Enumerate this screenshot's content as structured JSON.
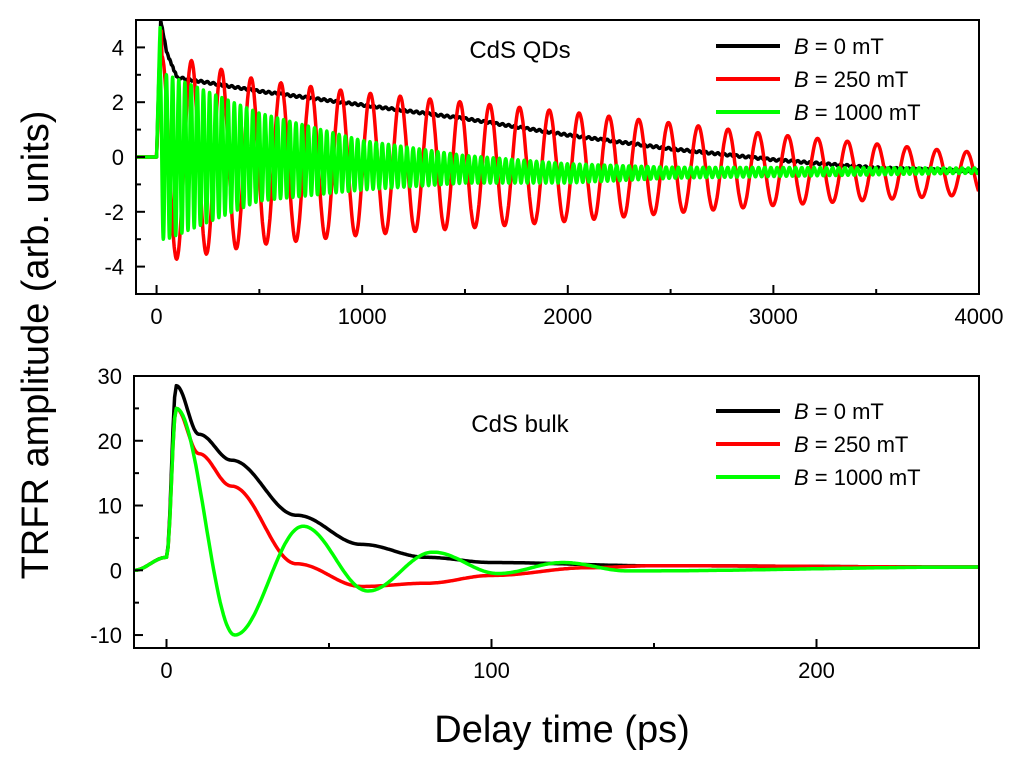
{
  "xlabel": "Delay time (ps)",
  "ylabel": "TRFR amplitude (arb. units)",
  "chart_data": [
    {
      "type": "line",
      "title": "",
      "annotation": "CdS QDs",
      "xlim": [
        -100,
        4000
      ],
      "ylim": [
        -5,
        5
      ],
      "xticks": [
        "0",
        "1000",
        "2000",
        "3000",
        "4000"
      ],
      "yticks": [
        "-4",
        "-2",
        "0",
        "2",
        "4"
      ],
      "grid": false,
      "legend_position": "top-right",
      "series": [
        {
          "name": "B = 0 mT",
          "var": "B",
          "rest": " = 0 mT",
          "color": "#000000",
          "model": "qd_b0",
          "x": [
            0,
            100,
            500,
            1000,
            1500,
            2000,
            2500,
            3000,
            3500,
            3900
          ],
          "y": [
            3.8,
            2.9,
            2.4,
            1.9,
            1.4,
            0.8,
            0.3,
            -0.1,
            -0.4,
            -0.5
          ]
        },
        {
          "name": "B = 250 mT",
          "var": "B",
          "rest": " = 250 mT",
          "color": "#ff0000",
          "model": "qd_b250",
          "period_ps": 145,
          "envelope_x": [
            100,
            500,
            1000,
            2000,
            3000,
            3900
          ],
          "envelope_amplitude": [
            3.7,
            3.0,
            2.6,
            2.0,
            1.3,
            0.8
          ]
        },
        {
          "name": "B = 1000 mT",
          "var": "B",
          "rest": " = 1000 mT",
          "color": "#00ff00",
          "model": "qd_b1000",
          "period_ps": 30,
          "envelope_x": [
            50,
            500,
            1000,
            1500,
            2500,
            3900
          ],
          "envelope_amplitude": [
            3.0,
            1.6,
            0.9,
            0.5,
            0.2,
            0.1
          ]
        }
      ]
    },
    {
      "type": "line",
      "title": "",
      "annotation": "CdS bulk",
      "xlim": [
        -10,
        250
      ],
      "ylim": [
        -12,
        30
      ],
      "xticks": [
        "0",
        "100",
        "200"
      ],
      "yticks": [
        "-10",
        "0",
        "10",
        "20",
        "30"
      ],
      "grid": false,
      "legend_position": "top-right",
      "series": [
        {
          "name": "B = 0 mT",
          "var": "B",
          "rest": " = 0 mT",
          "color": "#000000",
          "model": "bulk_b0",
          "x": [
            -10,
            0,
            3,
            10,
            20,
            40,
            60,
            80,
            100,
            150,
            250
          ],
          "y": [
            0,
            2,
            28.5,
            21,
            17,
            8.5,
            4,
            2,
            1.2,
            0.7,
            0.5
          ]
        },
        {
          "name": "B = 250 mT",
          "var": "B",
          "rest": " = 250 mT",
          "color": "#ff0000",
          "model": "bulk_b250",
          "x": [
            -10,
            0,
            3,
            10,
            20,
            40,
            60,
            80,
            100,
            130,
            150,
            250
          ],
          "y": [
            0,
            2,
            25,
            18,
            13,
            1,
            -2.5,
            -2,
            -0.8,
            0.4,
            0.7,
            0.5
          ]
        },
        {
          "name": "B = 1000 mT",
          "var": "B",
          "rest": " = 1000 mT",
          "color": "#00ff00",
          "model": "bulk_b1000",
          "x": [
            -10,
            0,
            3,
            21,
            42,
            62,
            82,
            102,
            122,
            142,
            250
          ],
          "y": [
            0,
            2,
            25,
            -10,
            6.8,
            -3.2,
            2.8,
            -0.5,
            1.2,
            -0.1,
            0.5
          ]
        }
      ]
    }
  ]
}
